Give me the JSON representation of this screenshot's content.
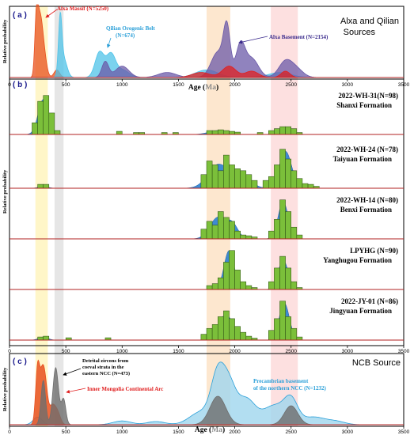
{
  "figure": {
    "x_axis_label_prefix": "Age (",
    "x_axis_label_unit": "Ma",
    "x_axis_label_suffix": ")",
    "x_range": [
      0,
      3500
    ],
    "highlight_bands": [
      {
        "from": 230,
        "to": 340,
        "color": "#fff6c8"
      },
      {
        "from": 400,
        "to": 480,
        "color": "#e6e6e6"
      },
      {
        "from": 1750,
        "to": 1960,
        "color": "#fde7cf"
      },
      {
        "from": 2320,
        "to": 2560,
        "color": "#fde0e0"
      }
    ],
    "colors": {
      "histogram": "#7bbf3a",
      "kde_blue": "#2a7fd0",
      "baseline": "#b22222",
      "alxa_massif": "#e8501e",
      "qilian": "#4fc3e8",
      "alxa_basement": "#6b5aa8",
      "alxa_red": "#e02020",
      "ncc_gray": "#6e6e6e",
      "ncc_blue": "#9fd6ee",
      "imca_orange": "#e8501e"
    }
  },
  "panel_a": {
    "tag": "( a )",
    "title_line1": "Alxa and Qilian",
    "title_line2": "Sources",
    "ylabel": "Relative probability",
    "labels": {
      "alxa_massif": "Alxa Massif (N=5250)",
      "qilian_line1": "Qilian Orogenic Belt",
      "qilian_line2": "(N=674)",
      "alxa_basement": "Alxa Basement (N=2154)"
    },
    "ticks": [
      "0",
      "500",
      "1000",
      "1500",
      "2000",
      "2500",
      "3000",
      "3500"
    ]
  },
  "panel_b": {
    "tag": "( b )",
    "ylabel": "Relative probability",
    "ticks": [
      "0",
      "500",
      "1000",
      "1500",
      "2000",
      "2500",
      "3000",
      "3500"
    ]
  },
  "panel_c": {
    "tag": "( c )",
    "title": "NCB Source",
    "ylabel": "Relative probability",
    "labels": {
      "detrital_line1": "Detrital zircons from",
      "detrital_line2": "coeval strata in the",
      "detrital_line3": "eastern NCC (N=473)",
      "imca": "Inner Mongolia Continental Arc",
      "precambrian_line1": "Precambrian basement",
      "precambrian_line2": "of the northern NCC (N=1232)"
    },
    "ticks": [
      "0",
      "500",
      "1000",
      "1500",
      "2000",
      "2500",
      "3000",
      "3500"
    ]
  },
  "chart_data": [
    {
      "type": "area",
      "panel": "a",
      "xlim": [
        0,
        3500
      ],
      "series": [
        {
          "name": "Alxa Massif (N=5250)",
          "color": "#e8501e",
          "peaks": [
            [
              240,
              0.95,
              15
            ],
            [
              270,
              0.7,
              20
            ],
            [
              300,
              0.45,
              25
            ],
            [
              420,
              0.12,
              25
            ]
          ]
        },
        {
          "name": "Qilian Orogenic Belt (N=674)",
          "color": "#4fc3e8",
          "peaks": [
            [
              450,
              0.85,
              15
            ],
            [
              480,
              0.3,
              30
            ],
            [
              800,
              0.4,
              40
            ],
            [
              900,
              0.35,
              40
            ],
            [
              1000,
              0.12,
              60
            ],
            [
              1750,
              0.12,
              100
            ],
            [
              2400,
              0.08,
              100
            ]
          ]
        },
        {
          "name": "Alxa Basement (N=2154)",
          "color": "#6b5aa8",
          "peaks": [
            [
              850,
              0.25,
              30
            ],
            [
              1000,
              0.18,
              60
            ],
            [
              1400,
              0.08,
              80
            ],
            [
              1850,
              0.4,
              60
            ],
            [
              1930,
              0.72,
              30
            ],
            [
              2050,
              0.5,
              40
            ],
            [
              2150,
              0.3,
              60
            ],
            [
              2450,
              0.25,
              60
            ],
            [
              2550,
              0.12,
              60
            ]
          ]
        },
        {
          "name": "",
          "color": "#e02020",
          "peaks": [
            [
              1700,
              0.08,
              80
            ],
            [
              1950,
              0.18,
              60
            ],
            [
              2150,
              0.1,
              60
            ],
            [
              2450,
              0.1,
              40
            ]
          ]
        }
      ]
    },
    {
      "type": "bar",
      "panel": "b",
      "xlim": [
        0,
        3500
      ],
      "bin_width": 50,
      "histograms": [
        {
          "sample": "2022-WH-31(N=98)",
          "formation": "Shanxi Formation",
          "bins": [
            [
              225,
              0.3
            ],
            [
              275,
              0.85
            ],
            [
              325,
              1.0
            ],
            [
              375,
              0.55
            ],
            [
              425,
              0.1
            ],
            [
              975,
              0.08
            ],
            [
              1125,
              0.05
            ],
            [
              1175,
              0.05
            ],
            [
              1375,
              0.05
            ],
            [
              1475,
              0.05
            ],
            [
              1775,
              0.1
            ],
            [
              1825,
              0.1
            ],
            [
              1875,
              0.12
            ],
            [
              1925,
              0.1
            ],
            [
              1975,
              0.08
            ],
            [
              2025,
              0.06
            ],
            [
              2225,
              0.05
            ],
            [
              2325,
              0.1
            ],
            [
              2375,
              0.15
            ],
            [
              2425,
              0.2
            ],
            [
              2475,
              0.2
            ],
            [
              2525,
              0.15
            ],
            [
              2575,
              0.05
            ]
          ],
          "kde": [
            [
              300,
              0.9,
              45
            ],
            [
              1850,
              0.1,
              80
            ],
            [
              2450,
              0.18,
              60
            ]
          ]
        },
        {
          "sample": "2022-WH-24 (N=78)",
          "formation": "Taiyuan Formation",
          "bins": [
            [
              275,
              0.1
            ],
            [
              325,
              0.1
            ],
            [
              1725,
              0.35
            ],
            [
              1775,
              0.7
            ],
            [
              1825,
              0.6
            ],
            [
              1875,
              0.45
            ],
            [
              1925,
              0.85
            ],
            [
              1975,
              0.6
            ],
            [
              2025,
              0.5
            ],
            [
              2075,
              0.45
            ],
            [
              2125,
              0.35
            ],
            [
              2175,
              0.2
            ],
            [
              2275,
              0.2
            ],
            [
              2325,
              0.3
            ],
            [
              2375,
              0.6
            ],
            [
              2425,
              1.0
            ],
            [
              2475,
              0.75
            ],
            [
              2525,
              0.45
            ],
            [
              2575,
              0.25
            ],
            [
              2625,
              0.12
            ],
            [
              2675,
              0.1
            ],
            [
              2725,
              0.05
            ]
          ],
          "kde": [
            [
              300,
              0.05,
              40
            ],
            [
              1850,
              0.6,
              90
            ],
            [
              2050,
              0.4,
              80
            ],
            [
              2450,
              0.95,
              55
            ]
          ]
        },
        {
          "sample": "2022-WH-14 (N=80)",
          "formation": "Benxi Formation",
          "bins": [
            [
              1725,
              0.25
            ],
            [
              1775,
              0.45
            ],
            [
              1825,
              0.35
            ],
            [
              1875,
              0.7
            ],
            [
              1925,
              0.55
            ],
            [
              1975,
              0.45
            ],
            [
              2025,
              0.2
            ],
            [
              2075,
              0.1
            ],
            [
              2125,
              0.08
            ],
            [
              2175,
              0.05
            ],
            [
              2325,
              0.2
            ],
            [
              2375,
              0.5
            ],
            [
              2425,
              1.0
            ],
            [
              2475,
              0.7
            ],
            [
              2525,
              0.3
            ],
            [
              2575,
              0.1
            ]
          ],
          "kde": [
            [
              1850,
              0.55,
              70
            ],
            [
              1980,
              0.35,
              50
            ],
            [
              2430,
              0.95,
              45
            ]
          ]
        },
        {
          "sample": "LPYHG (N=90)",
          "formation": "Yanghugou Formation",
          "bins": [
            [
              1775,
              0.1
            ],
            [
              1825,
              0.15
            ],
            [
              1875,
              0.3
            ],
            [
              1925,
              0.7
            ],
            [
              1975,
              1.0
            ],
            [
              2025,
              0.5
            ],
            [
              2075,
              0.2
            ],
            [
              2125,
              0.1
            ],
            [
              2175,
              0.05
            ],
            [
              2325,
              0.2
            ],
            [
              2375,
              0.55
            ],
            [
              2425,
              0.85
            ],
            [
              2475,
              0.55
            ],
            [
              2525,
              0.2
            ],
            [
              2575,
              0.05
            ]
          ],
          "kde": [
            [
              1950,
              1.0,
              45
            ],
            [
              2430,
              0.75,
              45
            ]
          ]
        },
        {
          "sample": "2022-JY-01 (N=86)",
          "formation": "Jingyuan Formation",
          "bins": [
            [
              275,
              0.08
            ],
            [
              325,
              0.1
            ],
            [
              525,
              0.06
            ],
            [
              875,
              0.06
            ],
            [
              1725,
              0.15
            ],
            [
              1775,
              0.3
            ],
            [
              1825,
              0.4
            ],
            [
              1875,
              0.6
            ],
            [
              1925,
              0.75
            ],
            [
              1975,
              0.55
            ],
            [
              2025,
              0.35
            ],
            [
              2075,
              0.2
            ],
            [
              2125,
              0.1
            ],
            [
              2175,
              0.05
            ],
            [
              2325,
              0.25
            ],
            [
              2375,
              0.55
            ],
            [
              2425,
              1.0
            ],
            [
              2475,
              0.6
            ],
            [
              2525,
              0.3
            ],
            [
              2575,
              0.08
            ]
          ],
          "kde": [
            [
              300,
              0.08,
              40
            ],
            [
              1920,
              0.65,
              70
            ],
            [
              2440,
              0.95,
              45
            ]
          ]
        }
      ]
    },
    {
      "type": "area",
      "panel": "c",
      "xlim": [
        0,
        3500
      ],
      "series": [
        {
          "name": "Inner Mongolia Continental Arc",
          "color": "#e8501e",
          "peaks": [
            [
              250,
              0.9,
              18
            ],
            [
              290,
              0.7,
              20
            ],
            [
              320,
              0.5,
              20
            ],
            [
              380,
              0.3,
              30
            ],
            [
              430,
              0.15,
              25
            ]
          ]
        },
        {
          "name": "Detrital zircons from coeval strata in the eastern NCC (N=473)",
          "color": "#6e6e6e",
          "peaks": [
            [
              300,
              0.7,
              20
            ],
            [
              410,
              0.9,
              25
            ],
            [
              480,
              0.4,
              20
            ],
            [
              1850,
              0.45,
              70
            ],
            [
              2500,
              0.3,
              60
            ]
          ]
        },
        {
          "name": "Precambrian basement of the northern NCC (N=1232)",
          "color": "#9fd6ee",
          "peaks": [
            [
              250,
              0.12,
              40
            ],
            [
              1000,
              0.06,
              80
            ],
            [
              1300,
              0.05,
              80
            ],
            [
              1700,
              0.2,
              100
            ],
            [
              1850,
              0.75,
              60
            ],
            [
              1950,
              0.55,
              60
            ],
            [
              2100,
              0.4,
              80
            ],
            [
              2350,
              0.3,
              100
            ],
            [
              2500,
              0.35,
              60
            ],
            [
              2700,
              0.12,
              100
            ],
            [
              2900,
              0.05,
              80
            ]
          ]
        }
      ]
    }
  ]
}
